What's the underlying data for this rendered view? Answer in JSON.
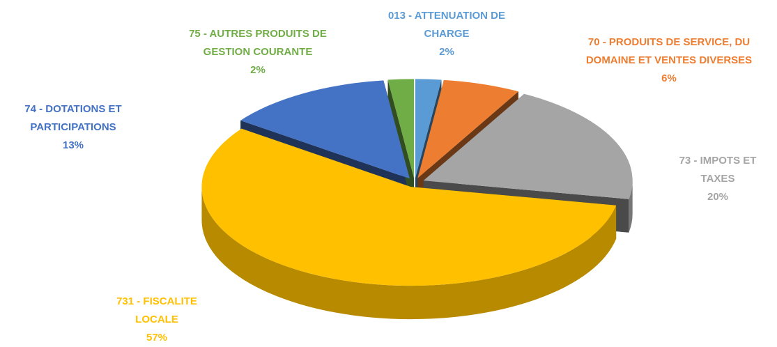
{
  "chart_data": {
    "type": "pie3d",
    "categories": [
      "013 - ATTENUATION DE CHARGE",
      "70 - PRODUITS DE SERVICE, DU DOMAINE ET VENTES DIVERSES",
      "73 - IMPOTS ET TAXES",
      "731 - FISCALITE LOCALE",
      "74 - DOTATIONS ET PARTICIPATIONS",
      "75 - AUTRES PRODUITS DE GESTION COURANTE"
    ],
    "values": [
      2,
      6,
      20,
      57,
      13,
      2
    ],
    "value_labels": [
      "2%",
      "6%",
      "20%",
      "57%",
      "13%",
      "2%"
    ],
    "colors": [
      "#5b9bd5",
      "#ed7d31",
      "#a5a5a5",
      "#ffc000",
      "#4472c4",
      "#70ad47"
    ]
  }
}
